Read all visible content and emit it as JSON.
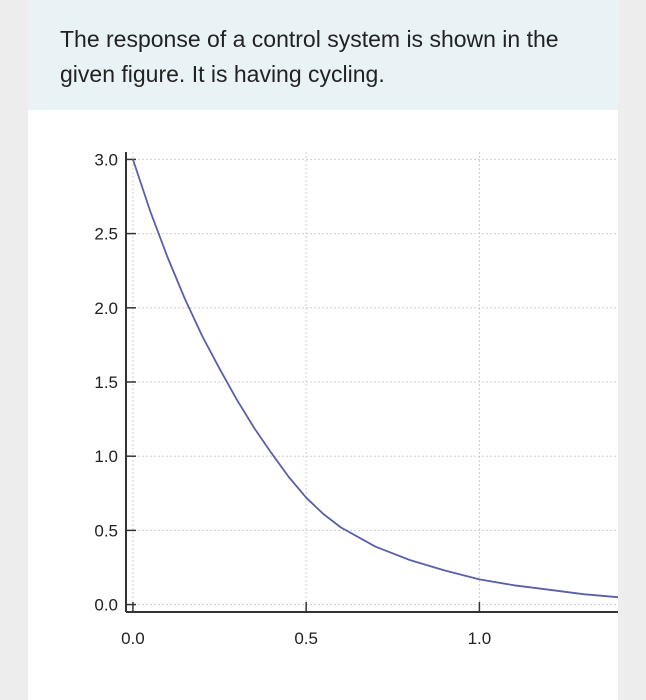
{
  "question": {
    "text": "The response of a control system is shown in the given figure. It is having cycling."
  },
  "chart_data": {
    "type": "line",
    "title": "",
    "xlabel": "",
    "ylabel": "",
    "xlim": [
      -0.02,
      1.4
    ],
    "ylim": [
      -0.05,
      3.05
    ],
    "xticks": [
      0.0,
      0.5,
      1.0
    ],
    "yticks": [
      0.0,
      0.5,
      1.0,
      1.5,
      2.0,
      2.5,
      3.0
    ],
    "xtick_labels": [
      "0.0",
      "0.5",
      "1.0"
    ],
    "ytick_labels": [
      "0.0",
      "0.5",
      "1.0",
      "1.5",
      "2.0",
      "2.5",
      "3.0"
    ],
    "grid": true,
    "line_color": "#5a5fa8",
    "series": [
      {
        "x": [
          0,
          0.05,
          0.1,
          0.15,
          0.2,
          0.25,
          0.3,
          0.35,
          0.4,
          0.45,
          0.5,
          0.55,
          0.6,
          0.7,
          0.8,
          0.9,
          1.0,
          1.1,
          1.2,
          1.3,
          1.4
        ],
        "y": [
          3.0,
          2.65,
          2.34,
          2.06,
          1.81,
          1.59,
          1.38,
          1.19,
          1.02,
          0.86,
          0.72,
          0.61,
          0.52,
          0.39,
          0.3,
          0.23,
          0.17,
          0.13,
          0.1,
          0.07,
          0.05
        ]
      }
    ]
  }
}
